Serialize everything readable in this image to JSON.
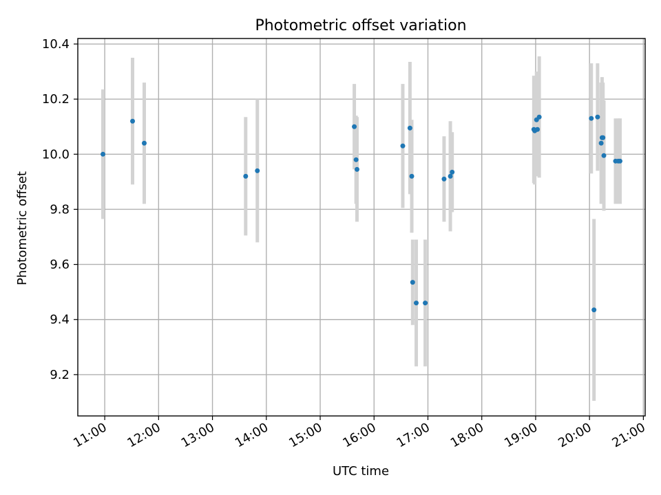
{
  "chart_data": {
    "type": "scatter",
    "title": "Photometric offset variation",
    "xlabel": "UTC time",
    "ylabel": "Photometric offset",
    "xlim": [
      "10:30",
      "21:02"
    ],
    "ylim": [
      9.05,
      10.42
    ],
    "grid": true,
    "x_ticks": [
      "11:00",
      "12:00",
      "13:00",
      "14:00",
      "15:00",
      "16:00",
      "17:00",
      "18:00",
      "19:00",
      "20:00",
      "21:00"
    ],
    "y_ticks": [
      9.2,
      9.4,
      9.6,
      9.8,
      10.0,
      10.2,
      10.4
    ],
    "colors": {
      "marker": "#1f77b4",
      "errorbar": "#d3d3d3",
      "grid": "#b0b0b0"
    },
    "points": [
      {
        "x": "10:58",
        "y": 10.0,
        "err": 0.235
      },
      {
        "x": "11:31",
        "y": 10.12,
        "err": 0.23
      },
      {
        "x": "11:44",
        "y": 10.04,
        "err": 0.22
      },
      {
        "x": "13:37",
        "y": 9.92,
        "err": 0.215
      },
      {
        "x": "13:50",
        "y": 9.94,
        "err": 0.26
      },
      {
        "x": "15:38",
        "y": 10.1,
        "err": 0.155
      },
      {
        "x": "15:40",
        "y": 9.98,
        "err": 0.16
      },
      {
        "x": "15:41",
        "y": 9.945,
        "err": 0.19
      },
      {
        "x": "16:32",
        "y": 10.03,
        "err": 0.225
      },
      {
        "x": "16:40",
        "y": 10.095,
        "err": 0.24
      },
      {
        "x": "16:42",
        "y": 9.92,
        "err": 0.205
      },
      {
        "x": "16:43",
        "y": 9.535,
        "err": 0.155
      },
      {
        "x": "16:47",
        "y": 9.46,
        "err": 0.23
      },
      {
        "x": "16:57",
        "y": 9.46,
        "err": 0.23
      },
      {
        "x": "17:18",
        "y": 9.91,
        "err": 0.155
      },
      {
        "x": "17:25",
        "y": 9.92,
        "err": 0.2
      },
      {
        "x": "17:27",
        "y": 9.935,
        "err": 0.145
      },
      {
        "x": "18:58",
        "y": 10.09,
        "err": 0.195
      },
      {
        "x": "18:59",
        "y": 10.085,
        "err": 0.195
      },
      {
        "x": "19:01",
        "y": 10.125,
        "err": 0.175
      },
      {
        "x": "19:02",
        "y": 10.09,
        "err": 0.17
      },
      {
        "x": "19:04",
        "y": 10.135,
        "err": 0.22
      },
      {
        "x": "20:02",
        "y": 10.13,
        "err": 0.2
      },
      {
        "x": "20:05",
        "y": 9.435,
        "err": 0.33
      },
      {
        "x": "20:09",
        "y": 10.135,
        "err": 0.195
      },
      {
        "x": "20:13",
        "y": 10.04,
        "err": 0.22
      },
      {
        "x": "20:14",
        "y": 10.06,
        "err": 0.22
      },
      {
        "x": "20:15",
        "y": 10.06,
        "err": 0.2
      },
      {
        "x": "20:16",
        "y": 9.995,
        "err": 0.2
      },
      {
        "x": "20:29",
        "y": 9.975,
        "err": 0.155
      },
      {
        "x": "20:32",
        "y": 9.975,
        "err": 0.155
      },
      {
        "x": "20:34",
        "y": 9.975,
        "err": 0.155
      }
    ]
  }
}
